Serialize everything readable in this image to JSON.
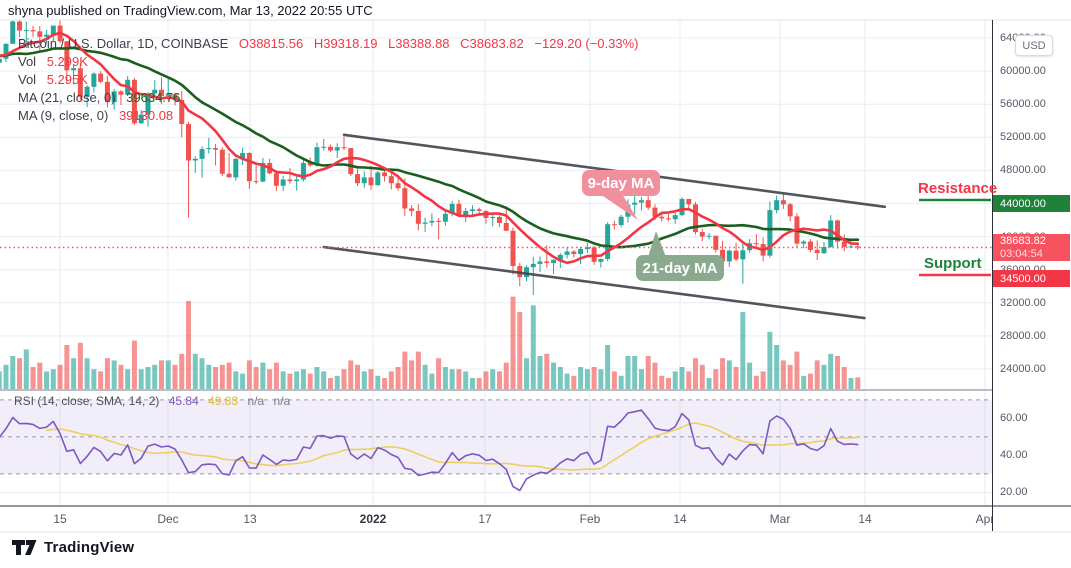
{
  "header": {
    "text": "shyna published on TradingView.com, Mar 13, 2022 20:55 UTC"
  },
  "legend": {
    "title": "Bitcoin / U.S. Dollar, 1D, COINBASE",
    "o": "O38815.56",
    "h": "H39318.19",
    "l": "L38388.88",
    "c": "C38683.82",
    "change": "−129.20 (−0.33%)",
    "vol1_label": "Vol",
    "vol1_value": "5.299K",
    "vol2_label": "Vol",
    "vol2_value": "5.295K",
    "ma21_label": "MA (21, close, 0)",
    "ma21_value": "39634.76",
    "ma9_label": "MA (9, close, 0)",
    "ma9_value": "39130.08"
  },
  "rsi_legend": {
    "label": "RSI (14, close, SMA, 14, 2)",
    "value": "45.84",
    "ma_value": "49.83",
    "na1": "n/a",
    "na2": "n/a"
  },
  "annotations": {
    "resistance_text": "Resistance",
    "support_text": "Support",
    "ma9_callout": "9-day MA",
    "ma21_callout": "21-day MA"
  },
  "price_axis": {
    "currency_button": "USD",
    "ticks": [
      64000,
      60000,
      56000,
      52000,
      48000,
      44000,
      40000,
      36000,
      32000,
      28000,
      24000
    ],
    "resistance_label": "44000.00",
    "last_label": "38683.82",
    "countdown": "03:04:54",
    "support_label": "34500.00"
  },
  "rsi_axis": {
    "ticks": [
      "60.00",
      "40.00",
      "20.00"
    ]
  },
  "time_axis": {
    "ticks": [
      {
        "label": "15",
        "bold": false
      },
      {
        "label": "Dec",
        "bold": false
      },
      {
        "label": "13",
        "bold": false
      },
      {
        "label": "2022",
        "bold": true
      },
      {
        "label": "17",
        "bold": false
      },
      {
        "label": "Feb",
        "bold": false
      },
      {
        "label": "14",
        "bold": false
      },
      {
        "label": "Mar",
        "bold": false
      },
      {
        "label": "14",
        "bold": false
      },
      {
        "label": "Apr",
        "bold": false
      }
    ]
  },
  "footer": {
    "brand": "TradingView"
  },
  "colors": {
    "up": "#26a69a",
    "down": "#ef5350",
    "ma_fast": "#f23645",
    "ma_slow": "#1b5e20",
    "rsi": "#7e57c2",
    "rsi_ma": "#ecd05e",
    "resistance": "#1e823b",
    "support": "#f23645",
    "last_price": "#f7525f",
    "trendline": "#44474d"
  },
  "chart_data": {
    "type": "candlestick",
    "symbol": "Bitcoin / U.S. Dollar",
    "interval": "1D",
    "exchange": "COINBASE",
    "price_range_shown": [
      24000,
      64000
    ],
    "rsi_range_shown": [
      20,
      60
    ],
    "last": {
      "open": 38815.56,
      "high": 39318.19,
      "low": 38388.88,
      "close": 38683.82,
      "change": -129.2,
      "change_pct": -0.33
    },
    "volume_last_k": 5.299,
    "indicators": {
      "ma_fast_period": 9,
      "ma_slow_period": 21,
      "rsi_period": 14,
      "rsi_smoothing": "SMA",
      "rsi_smoothing_period": 14,
      "rsi_bands": [
        70,
        50,
        30
      ],
      "rsi_last": 45.84,
      "rsi_ma_last": 49.83
    },
    "levels": {
      "resistance": 44000,
      "support": 34500,
      "last_price": 38683.82
    },
    "channel": {
      "upper": {
        "t1": 50,
        "p1": 52300,
        "t2": 130,
        "p2": 43600
      },
      "lower": {
        "t1": 47,
        "p1": 38740,
        "t2": 127,
        "p2": 30160
      }
    },
    "prewindow": 21,
    "columns": [
      "open",
      "high",
      "low",
      "close",
      "volume_k"
    ],
    "candles": [
      [
        61000,
        62200,
        60800,
        61500,
        9
      ],
      [
        61500,
        62600,
        61000,
        62000,
        9
      ],
      [
        62000,
        64800,
        61800,
        64300,
        11
      ],
      [
        64300,
        66600,
        63900,
        66000,
        12
      ],
      [
        66000,
        66600,
        61900,
        62200,
        14
      ],
      [
        62200,
        63000,
        60000,
        60700,
        12
      ],
      [
        60700,
        62000,
        60300,
        61300,
        9
      ],
      [
        61300,
        61800,
        60200,
        60900,
        8
      ],
      [
        60900,
        63500,
        60500,
        63100,
        10
      ],
      [
        63100,
        63300,
        59800,
        60300,
        12
      ],
      [
        60300,
        60500,
        58100,
        58500,
        12
      ],
      [
        58500,
        61000,
        58000,
        60600,
        10
      ],
      [
        60600,
        62700,
        60200,
        62300,
        10
      ],
      [
        62300,
        62900,
        60900,
        61900,
        8
      ],
      [
        61900,
        62400,
        60800,
        61400,
        7
      ],
      [
        61400,
        62000,
        59600,
        61000,
        9
      ],
      [
        61000,
        63600,
        60900,
        63200,
        10
      ],
      [
        63200,
        63800,
        62200,
        62900,
        8
      ],
      [
        62900,
        63100,
        60900,
        61400,
        9
      ],
      [
        61400,
        62000,
        60500,
        61000,
        8
      ],
      [
        61000,
        61900,
        60100,
        61500,
        8
      ],
      [
        61500,
        63350,
        61100,
        63300,
        11
      ],
      [
        63300,
        66400,
        63300,
        66000,
        15
      ],
      [
        66000,
        66500,
        64100,
        64900,
        14
      ],
      [
        64900,
        66000,
        62800,
        64950,
        18
      ],
      [
        64950,
        65450,
        64150,
        64800,
        10
      ],
      [
        64800,
        65450,
        62300,
        64150,
        12
      ],
      [
        64150,
        64950,
        63350,
        64400,
        8
      ],
      [
        64400,
        65500,
        63600,
        65500,
        9
      ],
      [
        65500,
        66200,
        63400,
        63600,
        11
      ],
      [
        63600,
        63600,
        58600,
        60100,
        20
      ],
      [
        60100,
        60800,
        58400,
        60350,
        14
      ],
      [
        60350,
        60950,
        56500,
        56900,
        21
      ],
      [
        56900,
        58300,
        55650,
        58100,
        14
      ],
      [
        58100,
        59850,
        57400,
        59700,
        9
      ],
      [
        59700,
        60000,
        58550,
        58700,
        8
      ],
      [
        58700,
        59450,
        55600,
        56250,
        14
      ],
      [
        56250,
        57850,
        55350,
        57550,
        13
      ],
      [
        57550,
        57700,
        55900,
        57150,
        11
      ],
      [
        57150,
        59400,
        57000,
        58950,
        9
      ],
      [
        58950,
        59150,
        53500,
        53700,
        22
      ],
      [
        53700,
        55300,
        53600,
        54750,
        9
      ],
      [
        54750,
        57450,
        53300,
        57300,
        10
      ],
      [
        57300,
        58900,
        56750,
        57750,
        11
      ],
      [
        57750,
        59250,
        56000,
        57000,
        13
      ],
      [
        57000,
        59100,
        56500,
        57200,
        13
      ],
      [
        57200,
        57400,
        55850,
        56500,
        11
      ],
      [
        56500,
        57600,
        52000,
        53600,
        16
      ],
      [
        53600,
        53850,
        42330,
        49200,
        40
      ],
      [
        49200,
        49700,
        47700,
        49400,
        16
      ],
      [
        49400,
        50900,
        47100,
        50580,
        14
      ],
      [
        50580,
        51940,
        50050,
        50700,
        11
      ],
      [
        50700,
        51200,
        48600,
        50500,
        10
      ],
      [
        50500,
        50800,
        47300,
        47600,
        11
      ],
      [
        47600,
        50100,
        47250,
        47150,
        12
      ],
      [
        47150,
        49500,
        46750,
        49400,
        8
      ],
      [
        49400,
        50750,
        48650,
        50100,
        7
      ],
      [
        50100,
        50200,
        45750,
        46700,
        13
      ],
      [
        46700,
        48650,
        46350,
        46650,
        10
      ],
      [
        46650,
        49500,
        46550,
        48900,
        12
      ],
      [
        48900,
        49400,
        47550,
        47650,
        9
      ],
      [
        47650,
        47990,
        45500,
        46150,
        12
      ],
      [
        46150,
        47350,
        45500,
        46900,
        8
      ],
      [
        46900,
        48300,
        46400,
        46700,
        7
      ],
      [
        46700,
        47550,
        45550,
        46900,
        8
      ],
      [
        46900,
        49300,
        46650,
        48900,
        9
      ],
      [
        48900,
        49550,
        48450,
        48600,
        7
      ],
      [
        48600,
        51375,
        48450,
        50800,
        10
      ],
      [
        50800,
        51800,
        50400,
        50850,
        8
      ],
      [
        50850,
        51150,
        50200,
        50400,
        5
      ],
      [
        50400,
        51280,
        49500,
        50800,
        6
      ],
      [
        50800,
        52100,
        50450,
        50700,
        9
      ],
      [
        50700,
        50700,
        47300,
        47550,
        13
      ],
      [
        47550,
        48150,
        46100,
        46450,
        11
      ],
      [
        46450,
        47900,
        45900,
        47150,
        8
      ],
      [
        47150,
        48550,
        45650,
        46200,
        9
      ],
      [
        46200,
        47950,
        46200,
        47750,
        6
      ],
      [
        47750,
        47950,
        46650,
        47300,
        5
      ],
      [
        47300,
        47600,
        45700,
        46450,
        8
      ],
      [
        46450,
        47500,
        45550,
        45850,
        10
      ],
      [
        45850,
        47050,
        42500,
        43400,
        17
      ],
      [
        43400,
        43800,
        42450,
        43100,
        13
      ],
      [
        43100,
        43900,
        40750,
        41550,
        17
      ],
      [
        41550,
        42300,
        40550,
        41700,
        11
      ],
      [
        41700,
        42800,
        41250,
        41900,
        7
      ],
      [
        41900,
        42250,
        39650,
        41800,
        14
      ],
      [
        41800,
        43100,
        41300,
        42750,
        10
      ],
      [
        42750,
        44300,
        42450,
        43950,
        9
      ],
      [
        43950,
        44450,
        42350,
        42550,
        9
      ],
      [
        42550,
        43450,
        41750,
        43100,
        8
      ],
      [
        43100,
        43800,
        42550,
        43300,
        5
      ],
      [
        43300,
        43500,
        42600,
        43100,
        5
      ],
      [
        43100,
        43200,
        41550,
        42250,
        8
      ],
      [
        42250,
        42700,
        41250,
        42375,
        9
      ],
      [
        42375,
        42550,
        41150,
        41650,
        8
      ],
      [
        41650,
        43500,
        40650,
        40700,
        12
      ],
      [
        40700,
        41100,
        35400,
        36450,
        42
      ],
      [
        36450,
        36800,
        34000,
        35100,
        35
      ],
      [
        35100,
        36550,
        34600,
        36300,
        14
      ],
      [
        36300,
        37550,
        32950,
        36700,
        38
      ],
      [
        36700,
        37600,
        35700,
        37000,
        15
      ],
      [
        37000,
        38950,
        36250,
        36800,
        16
      ],
      [
        36800,
        37250,
        35500,
        37200,
        12
      ],
      [
        37200,
        38000,
        36200,
        37800,
        10
      ],
      [
        37800,
        38700,
        37350,
        38200,
        7
      ],
      [
        38200,
        38350,
        37450,
        37900,
        6
      ],
      [
        37900,
        38750,
        36650,
        38500,
        10
      ],
      [
        38500,
        39250,
        38000,
        38700,
        9
      ],
      [
        38700,
        38850,
        36600,
        36950,
        10
      ],
      [
        36950,
        37350,
        36250,
        37300,
        9
      ],
      [
        37300,
        41750,
        37050,
        41500,
        20
      ],
      [
        41500,
        41900,
        40850,
        41400,
        8
      ],
      [
        41400,
        42650,
        41150,
        42400,
        6
      ],
      [
        42400,
        44500,
        41700,
        43850,
        15
      ],
      [
        43850,
        45300,
        42700,
        44100,
        15
      ],
      [
        44100,
        44800,
        43150,
        44400,
        9
      ],
      [
        44400,
        45850,
        43200,
        43500,
        15
      ],
      [
        43500,
        43900,
        42000,
        42400,
        12
      ],
      [
        42400,
        43050,
        41800,
        42200,
        6
      ],
      [
        42200,
        42750,
        41850,
        42100,
        5
      ],
      [
        42100,
        42850,
        41550,
        42600,
        8
      ],
      [
        42600,
        44750,
        42450,
        44550,
        10
      ],
      [
        44550,
        44550,
        43350,
        43900,
        8
      ],
      [
        43900,
        44200,
        40250,
        40550,
        14
      ],
      [
        40550,
        40950,
        39450,
        40000,
        11
      ],
      [
        40000,
        40450,
        39650,
        40100,
        5
      ],
      [
        40100,
        40150,
        38050,
        38400,
        9
      ],
      [
        38400,
        39500,
        36850,
        37000,
        14
      ],
      [
        37000,
        38450,
        36350,
        38300,
        13
      ],
      [
        38300,
        39250,
        37050,
        37250,
        10
      ],
      [
        37250,
        39300,
        34300,
        38350,
        35
      ],
      [
        38350,
        39700,
        38050,
        39200,
        12
      ],
      [
        39200,
        40300,
        38600,
        39100,
        6
      ],
      [
        39100,
        39900,
        37000,
        37700,
        8
      ],
      [
        37700,
        44250,
        37450,
        43200,
        26
      ],
      [
        43200,
        44950,
        42800,
        44400,
        20
      ],
      [
        44400,
        45100,
        43350,
        43900,
        13
      ],
      [
        43900,
        44100,
        41850,
        42450,
        11
      ],
      [
        42450,
        42850,
        38600,
        39150,
        17
      ],
      [
        39150,
        39600,
        38600,
        39400,
        6
      ],
      [
        39400,
        39700,
        38100,
        38400,
        7
      ],
      [
        38400,
        39550,
        37170,
        38000,
        13
      ],
      [
        38000,
        39350,
        37900,
        38750,
        11
      ],
      [
        38750,
        42600,
        38650,
        41950,
        16
      ],
      [
        41950,
        42050,
        38550,
        39400,
        15
      ],
      [
        39400,
        40250,
        38250,
        38730,
        10
      ],
      [
        38730,
        39450,
        38650,
        38815,
        5
      ],
      [
        38815.56,
        39318.19,
        38388.88,
        38683.82,
        5.3
      ]
    ]
  }
}
